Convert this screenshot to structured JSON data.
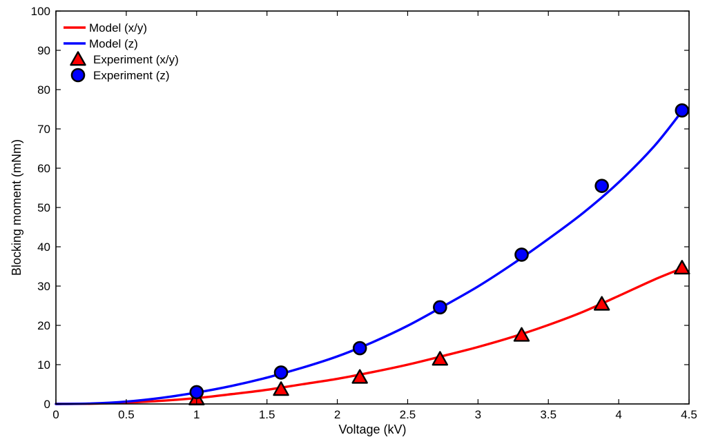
{
  "chart_data": {
    "type": "line",
    "title": "",
    "xlabel": "Voltage (kV)",
    "ylabel": "Blocking moment (mNm)",
    "xlim": [
      0,
      4.5
    ],
    "ylim": [
      0,
      100
    ],
    "xticks": [
      0,
      0.5,
      1,
      1.5,
      2,
      2.5,
      3,
      3.5,
      4,
      4.5
    ],
    "xtick_labels": [
      "0",
      "0.5",
      "1",
      "1.5",
      "2",
      "2.5",
      "3",
      "3.5",
      "4",
      "4.5"
    ],
    "yticks": [
      0,
      10,
      20,
      30,
      40,
      50,
      60,
      70,
      80,
      90,
      100
    ],
    "ytick_labels": [
      "0",
      "10",
      "20",
      "30",
      "40",
      "50",
      "60",
      "70",
      "80",
      "90",
      "100"
    ],
    "grid": false,
    "legend_position": "top-left",
    "series": [
      {
        "name": "Model (x/y)",
        "kind": "line",
        "color": "#ff0000",
        "x": [
          0,
          0.25,
          0.5,
          0.75,
          1.0,
          1.25,
          1.5,
          1.75,
          2.0,
          2.25,
          2.5,
          2.75,
          3.0,
          3.25,
          3.5,
          3.75,
          4.0,
          4.25,
          4.45
        ],
        "y": [
          0,
          0.06,
          0.36,
          0.8,
          1.5,
          2.5,
          3.6,
          5.0,
          6.4,
          8.1,
          10.0,
          12.2,
          14.5,
          17.1,
          20.1,
          23.5,
          27.5,
          31.6,
          34.5
        ]
      },
      {
        "name": "Model (z)",
        "kind": "line",
        "color": "#0000ff",
        "x": [
          0,
          0.25,
          0.5,
          0.75,
          1.0,
          1.25,
          1.5,
          1.75,
          2.0,
          2.25,
          2.5,
          2.75,
          3.0,
          3.25,
          3.5,
          3.75,
          4.0,
          4.25,
          4.45
        ],
        "y": [
          0,
          0.12,
          0.6,
          1.55,
          2.9,
          4.6,
          6.7,
          9.2,
          12.1,
          15.7,
          19.9,
          24.8,
          29.9,
          35.7,
          42.0,
          48.7,
          56.4,
          65.5,
          74.5
        ]
      },
      {
        "name": "Experiment (x/y)",
        "kind": "marker",
        "marker": "triangle",
        "color": "#ff0000",
        "x": [
          1.0,
          1.6,
          2.16,
          2.73,
          3.31,
          3.88,
          4.45
        ],
        "y": [
          1.3,
          3.7,
          6.8,
          11.4,
          17.5,
          25.4,
          34.6
        ]
      },
      {
        "name": "Experiment (z)",
        "kind": "marker",
        "marker": "circle",
        "color": "#0000ff",
        "x": [
          1.0,
          1.6,
          2.16,
          2.73,
          3.31,
          3.88,
          4.45
        ],
        "y": [
          3.0,
          8.0,
          14.2,
          24.6,
          38.0,
          55.5,
          74.7
        ]
      }
    ]
  }
}
